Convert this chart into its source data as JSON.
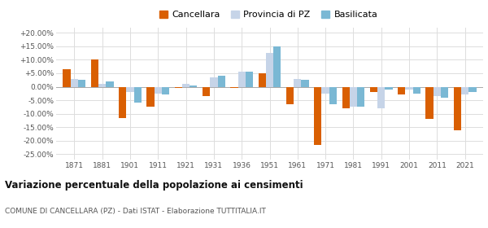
{
  "years": [
    1871,
    1881,
    1901,
    1911,
    1921,
    1931,
    1936,
    1951,
    1961,
    1971,
    1981,
    1991,
    2001,
    2011,
    2021
  ],
  "cancellara": [
    6.5,
    10.2,
    -11.5,
    -7.5,
    -0.5,
    -3.5,
    -0.5,
    5.0,
    -6.5,
    -21.5,
    -8.0,
    -2.0,
    -3.0,
    -12.0,
    -16.0
  ],
  "provincia_pz": [
    3.0,
    1.0,
    -2.0,
    -2.5,
    1.2,
    3.5,
    5.5,
    12.5,
    3.0,
    -2.5,
    -7.5,
    -8.0,
    -1.0,
    -3.5,
    -3.0
  ],
  "basilicata": [
    2.5,
    2.0,
    -6.0,
    -3.0,
    0.5,
    4.0,
    5.5,
    15.0,
    2.5,
    -6.5,
    -7.5,
    -1.0,
    -2.5,
    -4.0,
    -2.0
  ],
  "color_cancellara": "#d95f02",
  "color_provincia": "#c6d4e8",
  "color_basilicata": "#7ab8d4",
  "title": "Variazione percentuale della popolazione ai censimenti",
  "subtitle": "COMUNE DI CANCELLARA (PZ) - Dati ISTAT - Elaborazione TUTTITALIA.IT",
  "ylim": [
    -27,
    22
  ],
  "yticks": [
    -25.0,
    -20.0,
    -15.0,
    -10.0,
    -5.0,
    0.0,
    5.0,
    10.0,
    15.0,
    20.0
  ],
  "ytick_labels": [
    "-25.00%",
    "-20.00%",
    "-15.00%",
    "-10.00%",
    "-5.00%",
    "0.00%",
    "+5.00%",
    "+10.00%",
    "+15.00%",
    "+20.00%"
  ],
  "background_color": "#ffffff",
  "grid_color": "#dddddd"
}
